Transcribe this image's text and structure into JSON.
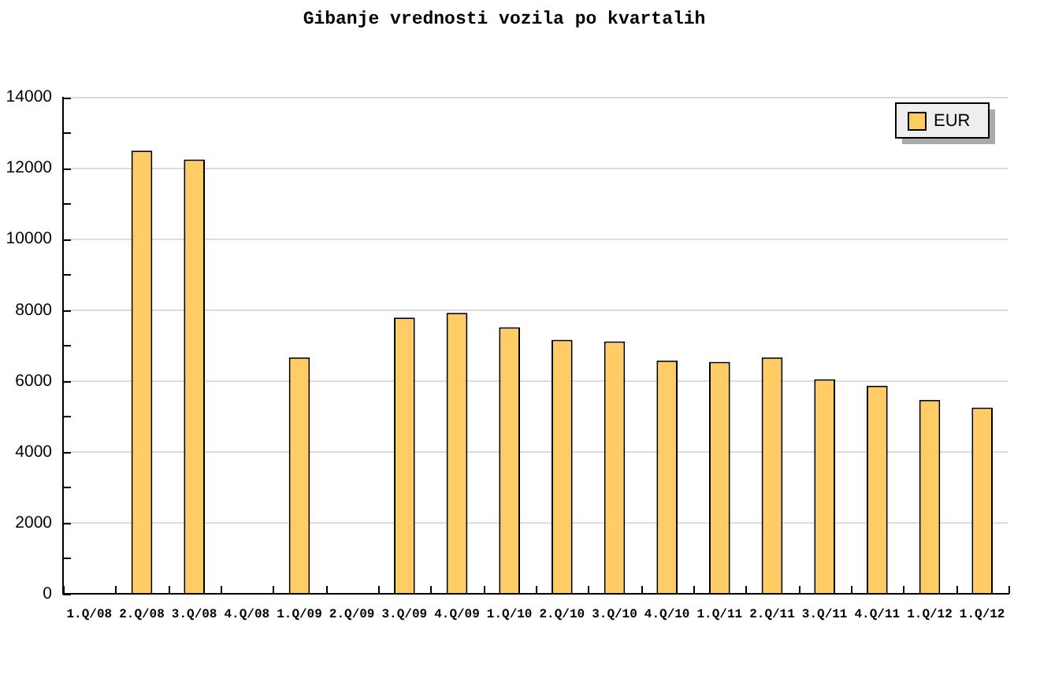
{
  "chart_data": {
    "type": "bar",
    "title": "Gibanje vrednosti vozila po kvartalih",
    "categories": [
      "1.Q/08",
      "2.Q/08",
      "3.Q/08",
      "4.Q/08",
      "1.Q/09",
      "2.Q/09",
      "3.Q/09",
      "4.Q/09",
      "1.Q/10",
      "2.Q/10",
      "3.Q/10",
      "4.Q/10",
      "1.Q/11",
      "2.Q/11",
      "3.Q/11",
      "4.Q/11",
      "1.Q/12",
      "1.Q/12"
    ],
    "series": [
      {
        "name": "EUR",
        "color": "#ffcc66",
        "values": [
          null,
          12500,
          12250,
          null,
          6670,
          null,
          7790,
          7920,
          7520,
          7160,
          7120,
          6580,
          6540,
          6670,
          6050,
          5870,
          5470,
          5250
        ]
      }
    ],
    "ylim": [
      0,
      14000
    ],
    "yticks": [
      0,
      {
        "value": 1000,
        "label": null
      },
      2000,
      {
        "value": 3000,
        "label": null
      },
      4000,
      {
        "value": 5000,
        "label": null
      },
      6000,
      {
        "value": 7000,
        "label": null
      },
      8000,
      {
        "value": 9000,
        "label": null
      },
      10000,
      {
        "value": 11000,
        "label": null
      },
      12000,
      {
        "value": 13000,
        "label": null
      },
      14000
    ],
    "grid": "y",
    "legend": "top right"
  }
}
